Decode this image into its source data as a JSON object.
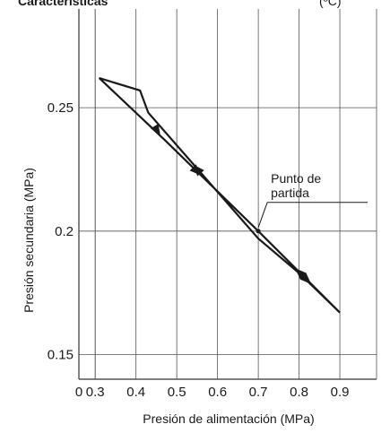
{
  "header": {
    "title_fragment": "Características",
    "unit_fragment": "(ºC)"
  },
  "chart_data": {
    "type": "line",
    "title": "",
    "xlabel": "Presión de alimentación (MPa)",
    "ylabel": "Presión secundaria (MPa)",
    "xlim": [
      0.26,
      0.99
    ],
    "ylim": [
      0.14,
      0.29
    ],
    "x_ticks": [
      0.3,
      0.4,
      0.5,
      0.6,
      0.7,
      0.8,
      0.9
    ],
    "x_tick_labels": [
      "0.3",
      "0.4",
      "0.5",
      "0.6",
      "0.7",
      "0.8",
      "0.9"
    ],
    "x_origin_label": "0",
    "y_ticks": [
      0.15,
      0.2,
      0.25
    ],
    "y_tick_labels": [
      "0.15",
      "0.2",
      "0.25"
    ],
    "grid": true,
    "series": [
      {
        "points": [
          [
            0.7,
            0.2
          ],
          [
            0.9,
            0.167
          ],
          [
            0.8,
            0.183
          ],
          [
            0.7,
            0.197
          ],
          [
            0.43,
            0.248
          ],
          [
            0.41,
            0.257
          ],
          [
            0.31,
            0.262
          ],
          [
            0.47,
            0.237
          ],
          [
            0.7,
            0.2
          ]
        ],
        "color": "#1a1a1a"
      }
    ],
    "arrows": [
      {
        "from": [
          0.78,
          0.1865
        ],
        "to": [
          0.83,
          0.1785
        ],
        "color": "#1a1a1a"
      },
      {
        "from": [
          0.84,
          0.177
        ],
        "to": [
          0.79,
          0.185
        ],
        "color": "#1a1a1a"
      },
      {
        "from": [
          0.58,
          0.2195
        ],
        "to": [
          0.54,
          0.227
        ],
        "color": "#1a1a1a"
      },
      {
        "from": [
          0.42,
          0.2495
        ],
        "to": [
          0.46,
          0.2385
        ],
        "color": "#1a1a1a"
      },
      {
        "from": [
          0.51,
          0.2305
        ],
        "to": [
          0.56,
          0.2225
        ],
        "color": "#1a1a1a"
      }
    ],
    "annotations": [
      {
        "lines": [
          "Punto de",
          "partida"
        ],
        "x": 0.7,
        "y": 0.2
      }
    ]
  }
}
